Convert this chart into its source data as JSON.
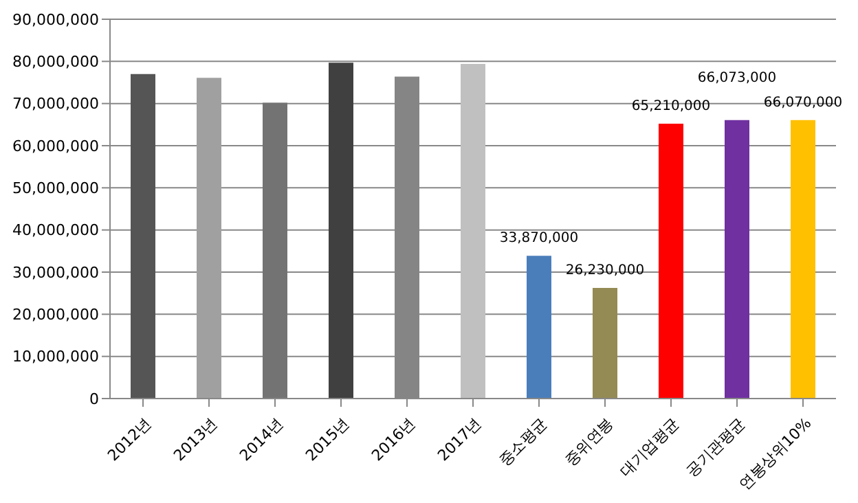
{
  "chart_data": {
    "type": "bar",
    "categories": [
      "2012년",
      "2013년",
      "2014년",
      "2015년",
      "2016년",
      "2017년",
      "중소평균",
      "중위연봉",
      "대기업평균",
      "공기관평균",
      "연봉상위10%"
    ],
    "values": [
      77000000,
      76100000,
      70200000,
      79700000,
      76400000,
      79400000,
      33870000,
      26230000,
      65210000,
      66073000,
      66070000
    ],
    "colors": [
      "#555555",
      "#a0a0a0",
      "#737373",
      "#404040",
      "#858585",
      "#c0c0c0",
      "#4a7ebb",
      "#948a54",
      "#ff0000",
      "#7030a0",
      "#ffc000"
    ],
    "value_labels": [
      null,
      null,
      null,
      null,
      null,
      null,
      "33,870,000",
      "26,230,000",
      "65,210,000",
      "66,073,000",
      "66,070,000"
    ],
    "ylim": [
      0,
      90000000
    ],
    "yticks": [
      0,
      {
        "value": 10000000,
        "label": "10,000,000"
      },
      {
        "value": 20000000,
        "label": "20,000,000"
      },
      {
        "value": 30000000,
        "label": "30,000,000"
      },
      {
        "value": 40000000,
        "label": "40,000,000"
      },
      {
        "value": 50000000,
        "label": "50,000,000"
      },
      {
        "value": 60000000,
        "label": "60,000,000"
      },
      {
        "value": 70000000,
        "label": "70,000,000"
      },
      {
        "value": 80000000,
        "label": "80,000,000"
      },
      {
        "value": 90000000,
        "label": "90,000,000"
      }
    ],
    "grid": "y"
  }
}
